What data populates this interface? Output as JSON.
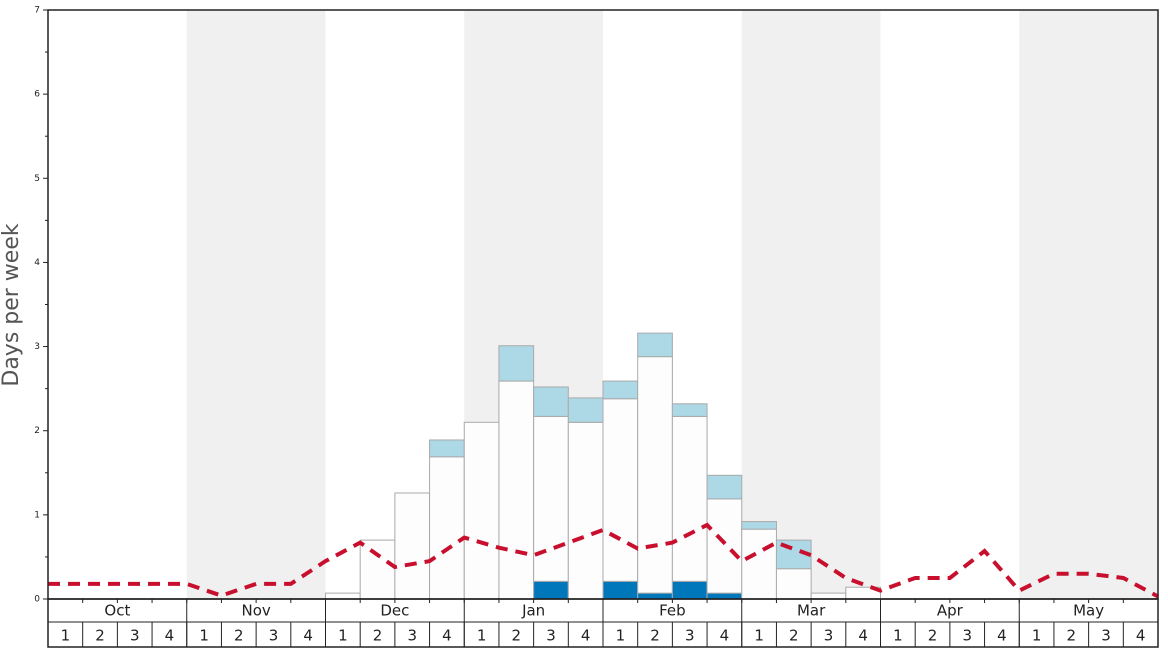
{
  "chart_data": {
    "type": "bar",
    "y_label": "Days per week",
    "months": [
      "Oct",
      "Nov",
      "Dec",
      "Jan",
      "Feb",
      "Mar",
      "Apr",
      "May"
    ],
    "categories": [
      "1",
      "2",
      "3",
      "4",
      "1",
      "2",
      "3",
      "4",
      "1",
      "2",
      "3",
      "4",
      "1",
      "2",
      "3",
      "4",
      "1",
      "2",
      "3",
      "4",
      "1",
      "2",
      "3",
      "4",
      "1",
      "2",
      "3",
      "4",
      "1",
      "2",
      "3",
      "4"
    ],
    "series": [
      {
        "color": "#0077bb",
        "values": [
          0,
          0,
          0,
          0,
          0,
          0,
          0,
          0,
          0,
          0,
          0,
          0,
          0,
          0,
          0.21,
          0,
          0.21,
          0.07,
          0.21,
          0.07,
          0,
          0,
          0,
          0,
          0,
          0,
          0,
          0,
          0,
          0,
          0,
          0
        ]
      },
      {
        "color": "#fdfdfd",
        "values": [
          0,
          0,
          0,
          0,
          0,
          0,
          0,
          0,
          0.07,
          0.7,
          1.26,
          1.69,
          2.1,
          2.59,
          1.96,
          2.1,
          2.17,
          2.81,
          1.96,
          1.12,
          0.83,
          0.36,
          0.07,
          0.14,
          0,
          0,
          0,
          0,
          0,
          0,
          0,
          0
        ]
      },
      {
        "color": "#add8e6",
        "values": [
          0,
          0,
          0,
          0,
          0,
          0,
          0,
          0,
          0,
          0,
          0,
          0.2,
          0,
          0.42,
          0.35,
          0.29,
          0.21,
          0.28,
          0.15,
          0.28,
          0.09,
          0.34,
          0,
          0,
          0,
          0,
          0,
          0,
          0,
          0,
          0,
          0
        ]
      }
    ],
    "line": {
      "color": "#c8102e",
      "x": [
        0,
        1,
        2,
        3,
        4,
        5,
        6,
        7,
        8,
        9,
        10,
        11,
        12,
        13,
        14,
        15,
        16,
        17,
        18,
        19,
        20,
        21,
        22,
        23,
        24,
        25,
        26,
        27,
        28,
        29,
        30,
        31,
        32
      ],
      "values": [
        0.18,
        0.18,
        0.18,
        0.18,
        0.18,
        0.04,
        0.18,
        0.18,
        0.45,
        0.67,
        0.38,
        0.45,
        0.73,
        0.61,
        0.52,
        0.67,
        0.82,
        0.6,
        0.67,
        0.88,
        0.45,
        0.67,
        0.52,
        0.25,
        0.1,
        0.25,
        0.25,
        0.57,
        0.1,
        0.3,
        0.3,
        0.25,
        0.03
      ]
    },
    "ylim": [
      0,
      7
    ],
    "yticks": [
      0,
      1,
      2,
      3,
      4,
      5,
      6,
      7
    ],
    "minor_yticks": [
      0.5,
      1.5,
      2.5,
      3.5,
      4.5,
      5.5,
      6.5
    ],
    "xlim": [
      0,
      32
    ],
    "shade_color": "#f0f0f0"
  }
}
